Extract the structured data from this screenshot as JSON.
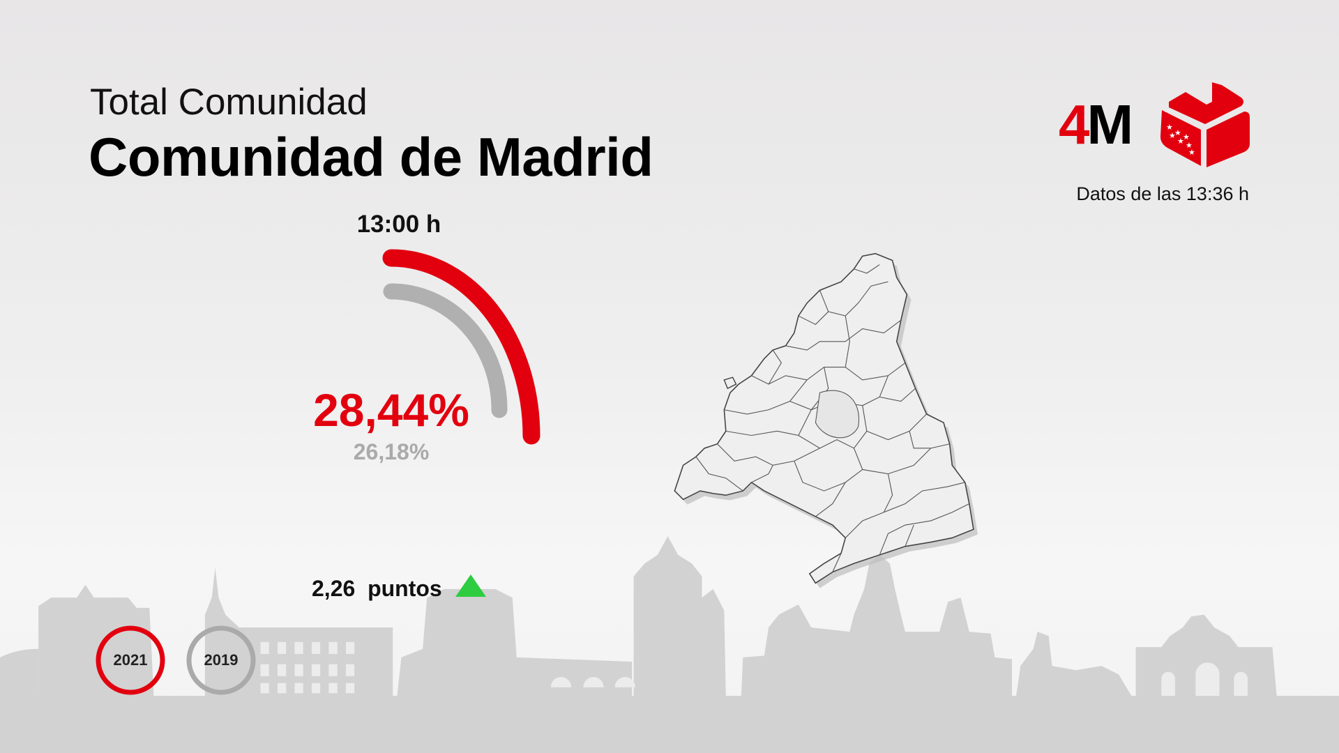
{
  "header": {
    "subtitle": "Total Comunidad",
    "title": "Comunidad de Madrid"
  },
  "logo": {
    "text": "4M",
    "icon": "ballot-box-icon"
  },
  "data_time": "Datos de las 13:36 h",
  "gauge": {
    "hour": "13:00 h",
    "current": "28,44%",
    "previous": "26,18%",
    "current_value": 28.44,
    "previous_value": 26.18,
    "current_color": "#e2000f",
    "previous_color": "#b0b0b0"
  },
  "difference": {
    "text": "2,26  puntos",
    "direction": "up",
    "icon": "triangle-up-icon",
    "color": "#2ecc40"
  },
  "years": [
    {
      "label": "2021",
      "color": "#e2000f",
      "active": true
    },
    {
      "label": "2019",
      "color": "#aaaaaa",
      "active": false
    }
  ]
}
